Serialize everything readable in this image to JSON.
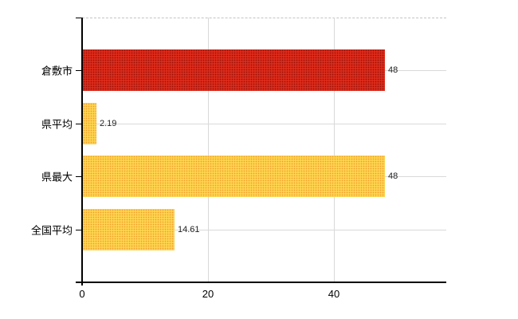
{
  "chart_data": {
    "type": "bar",
    "orientation": "horizontal",
    "title": "",
    "xlabel": "",
    "ylabel": "",
    "categories": [
      "倉敷市",
      "県平均",
      "県最大",
      "全国平均"
    ],
    "values": [
      48,
      2.19,
      48,
      14.61
    ],
    "value_labels": [
      "48",
      "2.19",
      "48",
      "14.61"
    ],
    "bar_color_names": [
      "red",
      "yellow",
      "yellow",
      "yellow"
    ],
    "xlim": [
      0,
      57.8
    ],
    "x_ticks": [
      0,
      20,
      40
    ],
    "x_tick_labels": [
      "0",
      "20",
      "40"
    ],
    "grid": "on",
    "legend": "none"
  },
  "colors": {
    "bar_red_base": "#dd2b1b",
    "bar_red_dot": "#9a1108",
    "bar_yellow_base": "#ffd54f",
    "bar_yellow_dot": "#ef9f2e",
    "gridline": "#d9d9d9",
    "top_dashed_gridline": "#c4c4c4",
    "axis": "#000000",
    "value_text": "#222222",
    "category_text": "#000000"
  }
}
